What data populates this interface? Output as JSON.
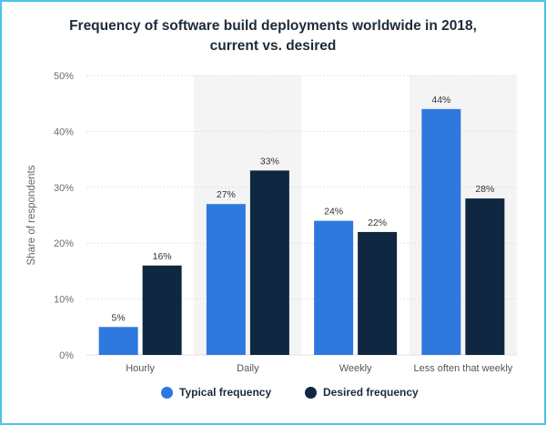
{
  "chart_data": {
    "type": "bar",
    "title_line1": "Frequency of software build deployments worldwide in 2018,",
    "title_line2": "current vs. desired",
    "ylabel": "Share of respondents",
    "categories": [
      "Hourly",
      "Daily",
      "Weekly",
      "Less often that weekly"
    ],
    "series": [
      {
        "name": "Typical frequency",
        "values": [
          5,
          27,
          24,
          44
        ],
        "color": "#2f78de"
      },
      {
        "name": "Desired frequency",
        "values": [
          16,
          33,
          22,
          28
        ],
        "color": "#0f2740"
      }
    ],
    "ylim": [
      0,
      50
    ],
    "yticks": [
      0,
      10,
      20,
      30,
      40,
      50
    ],
    "ytick_labels": [
      "0%",
      "10%",
      "20%",
      "30%",
      "40%",
      "50%"
    ],
    "value_suffix": "%",
    "grid": true,
    "legend_position": "bottom"
  }
}
